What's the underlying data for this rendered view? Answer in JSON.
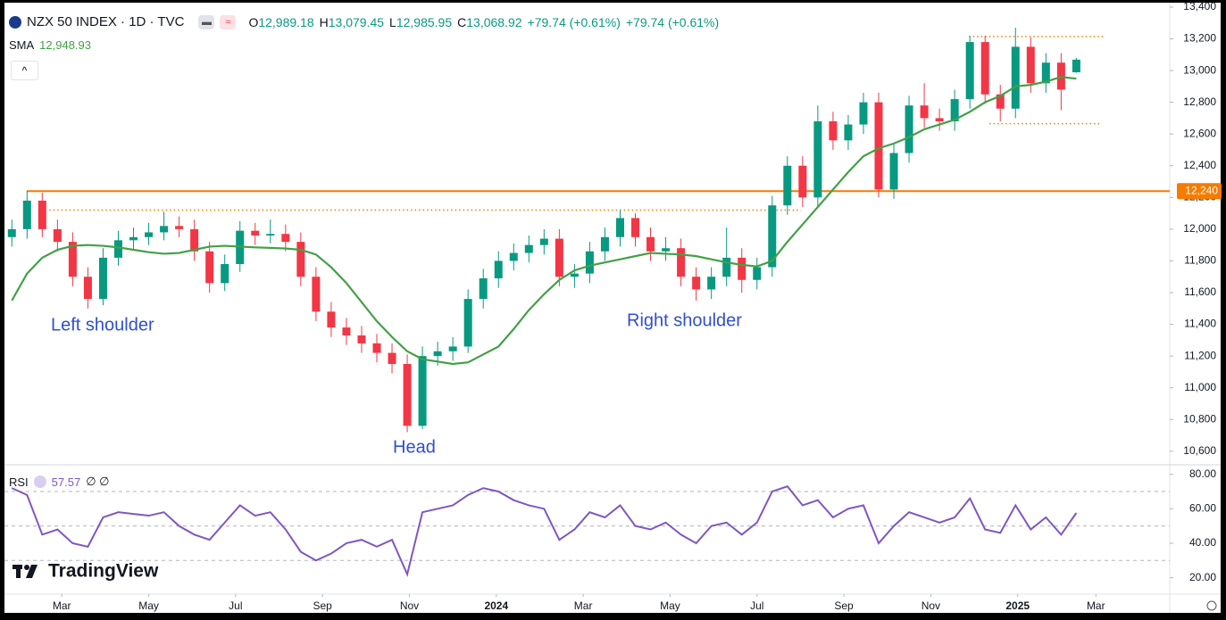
{
  "chart_data": [
    {
      "type": "candlestick",
      "title": "NZX 50 INDEX · 1D · TVC",
      "legend": {
        "items": [
          {
            "label": "O",
            "value": "12,989.18"
          },
          {
            "label": "H",
            "value": "13,079.45"
          },
          {
            "label": "L",
            "value": "12,985.95"
          },
          {
            "label": "C",
            "value": "13,068.92"
          }
        ],
        "changes": [
          "+79.74 (+0.61%)",
          "+79.74 (+0.61%)"
        ]
      },
      "x": [
        0.85,
        1.2,
        1.55,
        1.9,
        2.25,
        2.6,
        2.95,
        3.3,
        3.65,
        4,
        4.35,
        4.7,
        5.05,
        5.4,
        5.75,
        6.1,
        6.45,
        6.8,
        7.15,
        7.5,
        7.85,
        8.2,
        8.55,
        8.9,
        9.25,
        9.6,
        9.95,
        10.3,
        10.65,
        11,
        11.35,
        11.7,
        12.05,
        12.4,
        12.75,
        13.1,
        13.45,
        13.8,
        14.15,
        14.5,
        14.85,
        15.2,
        15.55,
        15.9,
        16.25,
        16.6,
        16.95,
        17.3,
        17.65,
        18,
        18.35,
        18.7,
        19.05,
        19.4,
        19.75,
        20.1,
        20.45,
        20.8,
        21.15,
        21.5,
        21.85,
        22.2,
        22.55,
        22.9,
        23.25,
        23.6,
        23.95,
        24.3,
        24.65,
        25,
        25.35
      ],
      "open": [
        11950,
        12000,
        12180,
        12000,
        11920,
        11700,
        11560,
        11820,
        11930,
        11950,
        11980,
        12020,
        12000,
        11860,
        11660,
        11780,
        11990,
        11960,
        11970,
        11920,
        11700,
        11480,
        11380,
        11330,
        11280,
        11220,
        11150,
        10760,
        11200,
        11230,
        11260,
        11560,
        11690,
        11800,
        11850,
        11900,
        11940,
        11700,
        11720,
        11860,
        11950,
        12070,
        11950,
        11860,
        11880,
        11700,
        11620,
        11700,
        11820,
        11680,
        11760,
        12150,
        12400,
        12200,
        12680,
        12560,
        12660,
        12800,
        12250,
        12480,
        12780,
        12700,
        12680,
        12820,
        13180,
        12850,
        12760,
        13150,
        12920,
        13050,
        12989.18
      ],
      "high": [
        12060,
        12240,
        12230,
        12060,
        11980,
        11760,
        11880,
        11990,
        12010,
        12040,
        12110,
        12080,
        12060,
        11920,
        11840,
        12050,
        12040,
        12060,
        12030,
        11980,
        11760,
        11540,
        11440,
        11390,
        11340,
        11280,
        11210,
        11260,
        11290,
        11320,
        11620,
        11750,
        11860,
        11910,
        11960,
        12000,
        12000,
        11780,
        11920,
        12010,
        12120,
        12100,
        12010,
        11950,
        11940,
        11760,
        11760,
        12010,
        11880,
        11820,
        12210,
        12460,
        12460,
        12780,
        12740,
        12720,
        12860,
        12860,
        12540,
        12840,
        12920,
        12760,
        12880,
        13220,
        13220,
        12910,
        13270,
        13210,
        13110,
        13110,
        13079.45
      ],
      "low": [
        11890,
        11940,
        11950,
        11860,
        11640,
        11500,
        11520,
        11770,
        11870,
        11900,
        11930,
        11950,
        11800,
        11600,
        11610,
        11730,
        11900,
        11910,
        11860,
        11640,
        11420,
        11320,
        11270,
        11220,
        11160,
        11090,
        10720,
        10740,
        11140,
        11170,
        11220,
        11500,
        11630,
        11740,
        11790,
        11840,
        11640,
        11630,
        11660,
        11800,
        11890,
        11890,
        11800,
        11800,
        11640,
        11550,
        11560,
        11640,
        11600,
        11620,
        11700,
        12090,
        12140,
        12140,
        12500,
        12500,
        12600,
        12200,
        12190,
        12420,
        12640,
        12620,
        12620,
        12760,
        12790,
        12680,
        12700,
        12860,
        12860,
        12750,
        12985.95
      ],
      "close": [
        12000,
        12180,
        12000,
        11920,
        11700,
        11560,
        11820,
        11930,
        11950,
        11980,
        12020,
        12000,
        11860,
        11660,
        11780,
        11990,
        11960,
        11970,
        11920,
        11700,
        11480,
        11380,
        11330,
        11280,
        11220,
        11150,
        10760,
        11200,
        11230,
        11260,
        11560,
        11690,
        11800,
        11850,
        11900,
        11940,
        11700,
        11720,
        11860,
        11950,
        12070,
        11950,
        11860,
        11880,
        11700,
        11620,
        11700,
        11820,
        11680,
        11760,
        12150,
        12400,
        12200,
        12680,
        12560,
        12660,
        12800,
        12250,
        12480,
        12780,
        12700,
        12680,
        12820,
        13180,
        12850,
        12760,
        13150,
        12920,
        13050,
        12880,
        13068.92
      ],
      "up_color": "#089981",
      "down_color": "#f23645",
      "sma": {
        "name": "SMA",
        "color": "#43a047",
        "value_label": "12,948.93",
        "values": [
          11550,
          11720,
          11820,
          11870,
          11895,
          11900,
          11895,
          11885,
          11870,
          11855,
          11845,
          11850,
          11870,
          11890,
          11895,
          11890,
          11885,
          11882,
          11878,
          11870,
          11840,
          11760,
          11660,
          11540,
          11420,
          11320,
          11230,
          11180,
          11165,
          11150,
          11160,
          11210,
          11260,
          11370,
          11490,
          11590,
          11680,
          11740,
          11770,
          11790,
          11810,
          11830,
          11850,
          11845,
          11840,
          11830,
          11810,
          11790,
          11775,
          11765,
          11800,
          11920,
          12030,
          12140,
          12250,
          12360,
          12460,
          12510,
          12540,
          12580,
          12630,
          12660,
          12690,
          12740,
          12800,
          12840,
          12900,
          12910,
          12930,
          12960,
          12948.93
        ]
      },
      "levels": [
        {
          "value": 12240,
          "label": "12,240",
          "color": "#f57c00",
          "style": "solid",
          "x": [
            1.19,
            27.5
          ]
        },
        {
          "value": 12120,
          "color": "#f57c00",
          "style": "dotted",
          "x": [
            1.71,
            19.01
          ]
        },
        {
          "value": 13215,
          "color": "#f57c00",
          "style": "dotted",
          "x": [
            22.88,
            25.97
          ]
        },
        {
          "value": 12665,
          "color": "#f57c00",
          "style": "dotted",
          "x": [
            23.35,
            25.9
          ]
        }
      ],
      "annotations": [
        "Left shoulder",
        "Head",
        "Right shoulder"
      ],
      "xlim": [
        0.68,
        27.5
      ],
      "xticks": [
        {
          "value": 2,
          "label": "Mar"
        },
        {
          "value": 4,
          "label": "May"
        },
        {
          "value": 6,
          "label": "Jul"
        },
        {
          "value": 8,
          "label": "Sep"
        },
        {
          "value": 10,
          "label": "Nov"
        },
        {
          "value": 12,
          "label": "2024"
        },
        {
          "value": 14,
          "label": "Mar"
        },
        {
          "value": 16,
          "label": "May"
        },
        {
          "value": 18,
          "label": "Jul"
        },
        {
          "value": 20,
          "label": "Sep"
        },
        {
          "value": 22,
          "label": "Nov"
        },
        {
          "value": 24,
          "label": "2025"
        },
        {
          "value": 25.8,
          "label": "Mar"
        }
      ],
      "ylim": [
        10520,
        13400
      ],
      "yticks": [
        {
          "value": 10600,
          "label": "10,600"
        },
        {
          "value": 10800,
          "label": "10,800"
        },
        {
          "value": 11000,
          "label": "11,000"
        },
        {
          "value": 11200,
          "label": "11,200"
        },
        {
          "value": 11400,
          "label": "11,400"
        },
        {
          "value": 11600,
          "label": "11,600"
        },
        {
          "value": 11800,
          "label": "11,800"
        },
        {
          "value": 12000,
          "label": "12,000"
        },
        {
          "value": 12200,
          "label": "12,200"
        },
        {
          "value": 12400,
          "label": "12,400"
        },
        {
          "value": 12600,
          "label": "12,600"
        },
        {
          "value": 12800,
          "label": "12,800"
        },
        {
          "value": 13000,
          "label": "13,000"
        },
        {
          "value": 13200,
          "label": "13,200"
        },
        {
          "value": 13400,
          "label": "13,400"
        }
      ],
      "grid": false,
      "watermark": "TradingView"
    },
    {
      "type": "line",
      "series": [
        {
          "name": "RSI",
          "color": "#7e57c2",
          "value_label": "57.57",
          "values": [
            72,
            68,
            45,
            48,
            40,
            38,
            55,
            58,
            57,
            56,
            58,
            50,
            45,
            42,
            52,
            62,
            56,
            58,
            48,
            35,
            30,
            34,
            40,
            42,
            38,
            42,
            22,
            58,
            60,
            62,
            68,
            72,
            70,
            65,
            62,
            60,
            42,
            48,
            58,
            55,
            62,
            50,
            48,
            52,
            45,
            40,
            50,
            52,
            45,
            52,
            70,
            73,
            62,
            65,
            55,
            60,
            62,
            40,
            50,
            58,
            55,
            52,
            55,
            66,
            48,
            46,
            62,
            48,
            55,
            45,
            57.57
          ]
        }
      ],
      "extra": "∅ ∅",
      "levels": [
        70,
        50,
        30
      ],
      "ylim": [
        11,
        85
      ],
      "yticks": [
        {
          "value": 20,
          "label": "20.00"
        },
        {
          "value": 40,
          "label": "40.00"
        },
        {
          "value": 60,
          "label": "60.00"
        },
        {
          "value": 80,
          "label": "80.00"
        }
      ],
      "grid": false
    }
  ]
}
